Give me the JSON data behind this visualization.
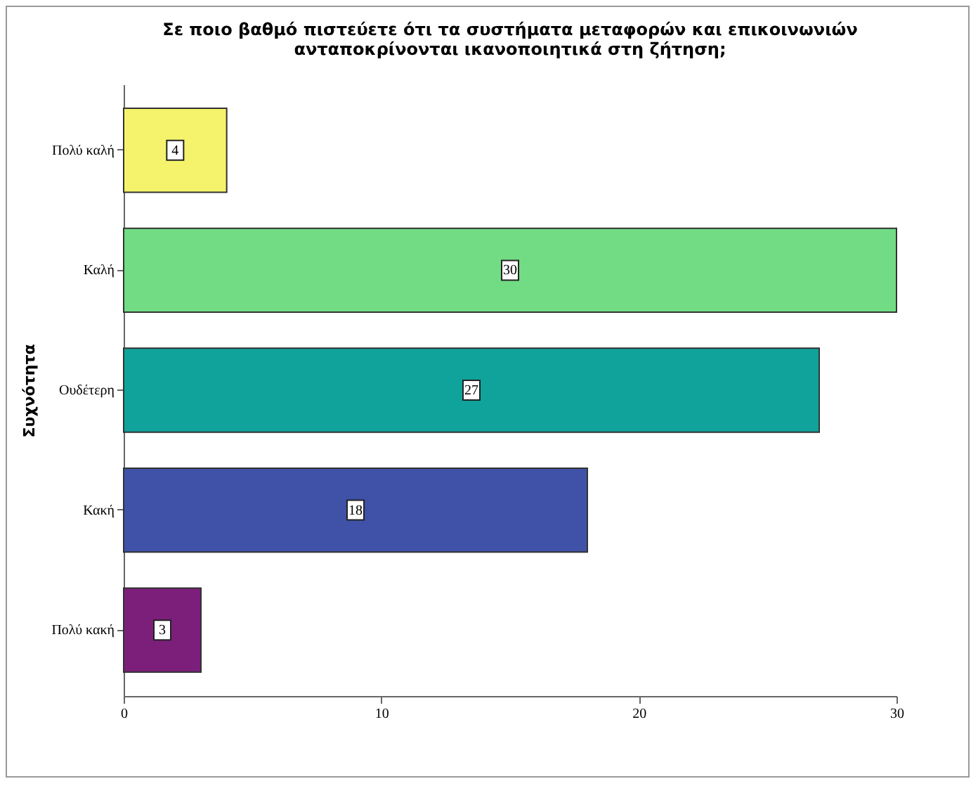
{
  "chart_data": {
    "type": "bar",
    "orientation": "horizontal",
    "title": [
      "Σε ποιο βαθμό πιστεύετε ότι τα συστήματα μεταφορών και επικοινωνιών",
      "ανταποκρίνονται ικανοποιητικά στη ζήτηση;"
    ],
    "ylabel": "Συχνότητα",
    "categories": [
      "Πολύ καλή",
      "Καλή",
      "Ουδέτερη",
      "Κακή",
      "Πολύ κακή"
    ],
    "values": [
      4,
      30,
      27,
      18,
      3
    ],
    "colors": [
      "#f5f36b",
      "#72dc84",
      "#10a39b",
      "#3f52a8",
      "#7b1f7a"
    ],
    "xlim": [
      0,
      30
    ],
    "xticks": [
      0,
      10,
      20,
      30
    ],
    "data_labels": true
  }
}
